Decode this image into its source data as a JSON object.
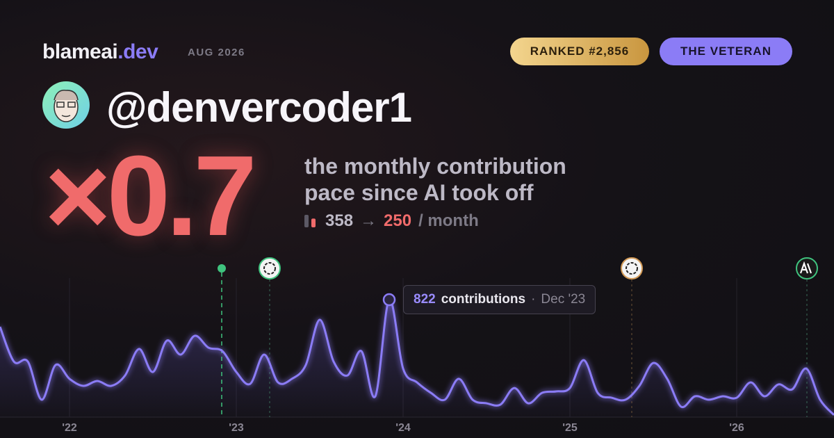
{
  "header": {
    "brand": "blameai",
    "brand_tld": ".dev",
    "date": "AUG 2026",
    "rank": "RANKED #2,856",
    "badge": "THE VETERAN"
  },
  "user": {
    "handle": "@denvercoder1"
  },
  "stat": {
    "multiplier": "×0.7",
    "caption": [
      "the monthly contribution",
      "pace since AI took off"
    ],
    "before": 358,
    "arrow": "→",
    "after": 250,
    "unit": "/ month"
  },
  "chart_data": {
    "type": "line",
    "categories": [
      null,
      null,
      null,
      null,
      null,
      "'22",
      null,
      null,
      null,
      null,
      null,
      null,
      null,
      null,
      null,
      null,
      null,
      "'23",
      null,
      null,
      null,
      null,
      null,
      null,
      null,
      null,
      null,
      null,
      null,
      "'24",
      null,
      null,
      null,
      null,
      null,
      null,
      null,
      null,
      null,
      null,
      null,
      "'25",
      null,
      null,
      null,
      null,
      null,
      null,
      null,
      null,
      null,
      null,
      null,
      "'26",
      null,
      null,
      null,
      null,
      null,
      null,
      null
    ],
    "series": [
      {
        "name": "contributions",
        "color": "#8b7cf6",
        "values": [
          632,
          389,
          389,
          122,
          365,
          268,
          219,
          253,
          219,
          292,
          477,
          316,
          535,
          438,
          569,
          486,
          462,
          316,
          233,
          438,
          243,
          268,
          365,
          681,
          389,
          292,
          462,
          146,
          822,
          340,
          243,
          170,
          122,
          268,
          122,
          97,
          88,
          204,
          97,
          170,
          180,
          204,
          399,
          170,
          136,
          122,
          219,
          379,
          268,
          73,
          146,
          122,
          146,
          136,
          243,
          146,
          229,
          195,
          340,
          122,
          15
        ]
      }
    ],
    "ylim": [
      0,
      900
    ],
    "annotation": "Dec '23",
    "grid": true
  }
}
